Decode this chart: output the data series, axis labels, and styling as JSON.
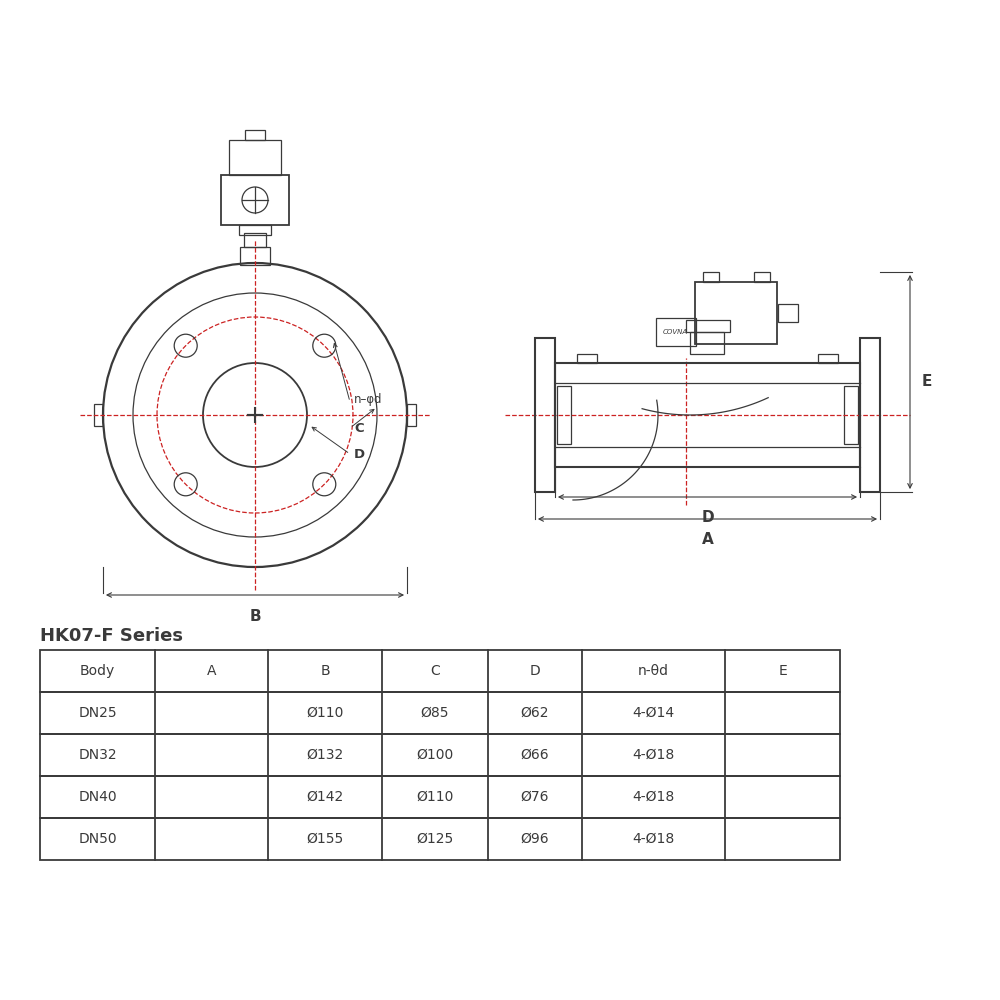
{
  "title": "HK07-F Series",
  "table_headers": [
    "Body",
    "A",
    "B",
    "C",
    "D",
    "n-θd",
    "E"
  ],
  "table_data": [
    [
      "DN25",
      "",
      "Ø110",
      "Ø85",
      "Ø62",
      "4-Ø14",
      ""
    ],
    [
      "DN32",
      "",
      "Ø132",
      "Ø100",
      "Ø66",
      "4-Ø18",
      ""
    ],
    [
      "DN40",
      "",
      "Ø142",
      "Ø110",
      "Ø76",
      "4-Ø18",
      ""
    ],
    [
      "DN50",
      "",
      "Ø155",
      "Ø125",
      "Ø96",
      "4-Ø18",
      ""
    ]
  ],
  "line_color": "#3a3a3a",
  "red_line_color": "#cc2222",
  "label_color": "#1a1a1a",
  "font_size": 11,
  "lw_main": 1.3,
  "lw_thin": 0.9,
  "lw_dim": 0.8
}
